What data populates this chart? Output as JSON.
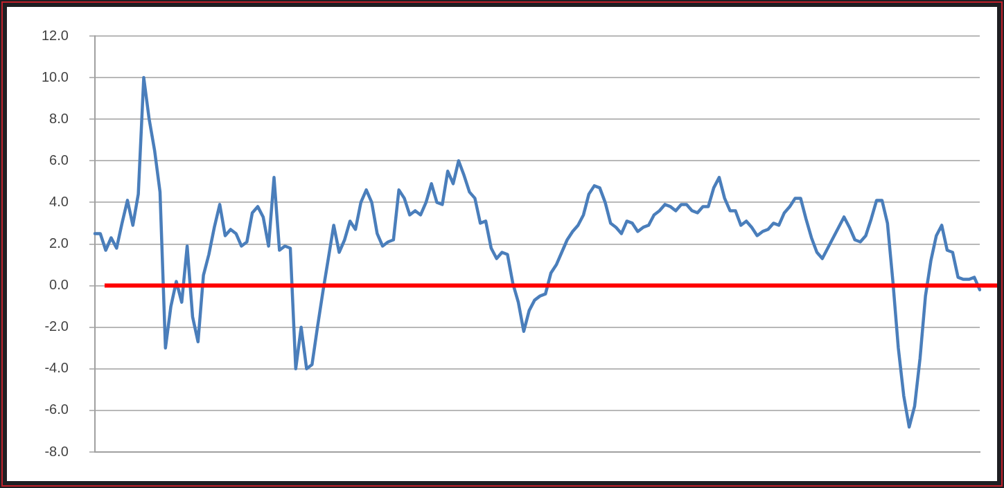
{
  "chart_data": {
    "type": "line",
    "categories": [
      null,
      null,
      null,
      null,
      null,
      null,
      null,
      null,
      null,
      null,
      null,
      null,
      null,
      null,
      null,
      null,
      null,
      null,
      null,
      null,
      null,
      null,
      null,
      null,
      null,
      null,
      null,
      null,
      null,
      null,
      null,
      null,
      null,
      null,
      null,
      null,
      null,
      null,
      null,
      null,
      null,
      null,
      null,
      null,
      null,
      null,
      null,
      null,
      null,
      null,
      null,
      null,
      null,
      null,
      null,
      null,
      null,
      null,
      null,
      null,
      null,
      null,
      null,
      null,
      null,
      null,
      null,
      null,
      null,
      null,
      null,
      null,
      null,
      null,
      null,
      null,
      null,
      null,
      null,
      null,
      null,
      null,
      null,
      null,
      null,
      null,
      null,
      null,
      null,
      null,
      null,
      null,
      null,
      null,
      null,
      null,
      null,
      null,
      null,
      null,
      null,
      null,
      null,
      null,
      null,
      null,
      null,
      null,
      null,
      null,
      null,
      null,
      null,
      null,
      null,
      null,
      null,
      null,
      null,
      null,
      null,
      null,
      null,
      null,
      null,
      null,
      null,
      null,
      null,
      null,
      null,
      null,
      null,
      null,
      null,
      null,
      null,
      null,
      null,
      null,
      null,
      null,
      null,
      null,
      null,
      null,
      null,
      null,
      null,
      null,
      null,
      null,
      null,
      null,
      null,
      null,
      null,
      null,
      null,
      null,
      null,
      null,
      null,
      null
    ],
    "series": [
      {
        "color": "#4a7ebb",
        "values": [
          2.5,
          2.5,
          1.7,
          2.3,
          1.8,
          3.0,
          4.1,
          2.9,
          4.4,
          10.0,
          8.0,
          6.5,
          4.5,
          -3.0,
          -1.0,
          0.2,
          -0.8,
          1.9,
          -1.5,
          -2.7,
          0.5,
          1.5,
          2.8,
          3.9,
          2.4,
          2.7,
          2.5,
          1.9,
          2.1,
          3.5,
          3.8,
          3.3,
          1.9,
          5.2,
          1.7,
          1.9,
          1.8,
          -4.0,
          -2.0,
          -4.0,
          -3.8,
          -2.0,
          -0.3,
          1.3,
          2.9,
          1.6,
          2.2,
          3.1,
          2.7,
          4.0,
          4.6,
          4.0,
          2.5,
          1.9,
          2.1,
          2.2,
          4.6,
          4.2,
          3.4,
          3.6,
          3.4,
          4.0,
          4.9,
          4.0,
          3.9,
          5.5,
          4.9,
          6.0,
          5.3,
          4.5,
          4.2,
          3.0,
          3.1,
          1.8,
          1.3,
          1.6,
          1.5,
          0.1,
          -0.8,
          -2.2,
          -1.2,
          -0.7,
          -0.5,
          -0.4,
          0.6,
          1.0,
          1.6,
          2.2,
          2.6,
          2.9,
          3.4,
          4.4,
          4.8,
          4.7,
          4.0,
          3.0,
          2.8,
          2.5,
          3.1,
          3.0,
          2.6,
          2.8,
          2.9,
          3.4,
          3.6,
          3.9,
          3.8,
          3.6,
          3.9,
          3.9,
          3.6,
          3.5,
          3.8,
          3.8,
          4.7,
          5.2,
          4.2,
          3.6,
          3.6,
          2.9,
          3.1,
          2.8,
          2.4,
          2.6,
          2.7,
          3.0,
          2.9,
          3.5,
          3.8,
          4.2,
          4.2,
          3.2,
          2.3,
          1.6,
          1.3,
          1.8,
          2.3,
          2.8,
          3.3,
          2.8,
          2.2,
          2.1,
          2.4,
          3.2,
          4.1,
          4.1,
          3.0,
          0.2,
          -3.0,
          -5.3,
          -6.8,
          -5.8,
          -3.5,
          -0.5,
          1.2,
          2.4,
          2.9,
          1.7,
          1.6,
          0.4,
          0.3,
          0.3,
          0.4,
          -0.2
        ]
      }
    ],
    "ylim": [
      -8,
      12
    ],
    "yticks": [
      {
        "value": -8,
        "label": "-8.0"
      },
      {
        "value": -6,
        "label": "-6.0"
      },
      {
        "value": -4,
        "label": "-4.0"
      },
      {
        "value": -2,
        "label": "-2.0"
      },
      {
        "value": 0,
        "label": "0.0"
      },
      {
        "value": 2,
        "label": "2.0"
      },
      {
        "value": 4,
        "label": "4.0"
      },
      {
        "value": 6,
        "label": "6.0"
      },
      {
        "value": 8,
        "label": "8.0"
      },
      {
        "value": 10,
        "label": "10.0"
      },
      {
        "value": 12,
        "label": "12.0"
      }
    ],
    "grid": "y",
    "tick_labels": "y",
    "marker": "none",
    "line_style": "solid",
    "ref_lines": [
      {
        "axis": "y",
        "value": 0,
        "color": "#ff0000"
      }
    ]
  }
}
